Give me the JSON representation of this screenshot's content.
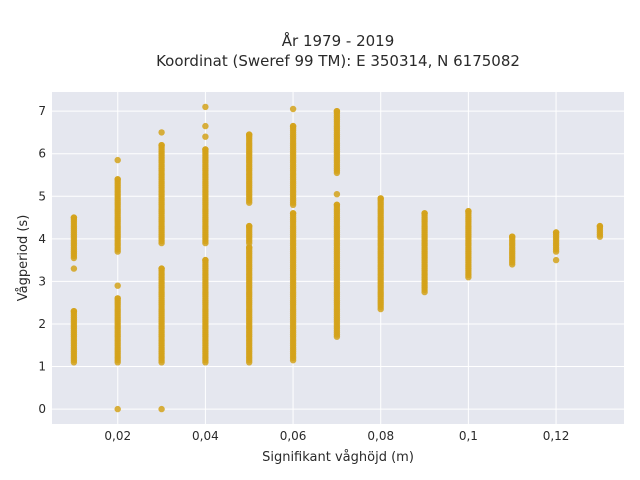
{
  "chart_data": {
    "type": "scatter",
    "title_line1": "År 1979 - 2019",
    "title_line2": "Koordinat (Sweref 99 TM): E 350314, N 6175082",
    "xlabel": "Signifikant våghöjd (m)",
    "ylabel": "Vågperiod (s)",
    "xlim": [
      0.005,
      0.1355
    ],
    "ylim": [
      -0.35,
      7.45
    ],
    "xticks": [
      0.02,
      0.04,
      0.06,
      0.08,
      0.1,
      0.12
    ],
    "xtick_labels": [
      "0,02",
      "0,04",
      "0,06",
      "0,08",
      "0,1",
      "0,12"
    ],
    "yticks": [
      0,
      1,
      2,
      3,
      4,
      5,
      6,
      7
    ],
    "ytick_labels": [
      "0",
      "1",
      "2",
      "3",
      "4",
      "5",
      "6",
      "7"
    ],
    "grid": true,
    "marker_color": "#d4a21a",
    "plot_bg": "#e5e7ef",
    "columns": [
      {
        "x": 0.01,
        "ranges": [
          [
            1.1,
            2.3
          ],
          [
            3.55,
            4.5
          ]
        ],
        "points": [
          3.3
        ]
      },
      {
        "x": 0.02,
        "ranges": [
          [
            1.1,
            2.6
          ],
          [
            3.7,
            5.4
          ]
        ],
        "points": [
          0,
          2.9,
          5.85
        ]
      },
      {
        "x": 0.03,
        "ranges": [
          [
            1.1,
            3.3
          ],
          [
            3.9,
            6.2
          ]
        ],
        "points": [
          0,
          6.5
        ]
      },
      {
        "x": 0.04,
        "ranges": [
          [
            1.1,
            3.5
          ],
          [
            3.9,
            6.1
          ]
        ],
        "points": [
          6.4,
          6.65,
          7.1
        ]
      },
      {
        "x": 0.05,
        "ranges": [
          [
            1.1,
            3.8
          ],
          [
            3.9,
            4.3
          ],
          [
            4.85,
            6.45
          ]
        ],
        "points": []
      },
      {
        "x": 0.06,
        "ranges": [
          [
            1.2,
            4.6
          ],
          [
            4.8,
            6.65
          ]
        ],
        "points": [
          1.15,
          7.05
        ]
      },
      {
        "x": 0.07,
        "ranges": [
          [
            1.7,
            4.8
          ],
          [
            5.55,
            7.0
          ]
        ],
        "points": [
          5.05
        ]
      },
      {
        "x": 0.08,
        "ranges": [
          [
            2.35,
            4.95
          ]
        ],
        "points": []
      },
      {
        "x": 0.09,
        "ranges": [
          [
            2.75,
            4.6
          ]
        ],
        "points": []
      },
      {
        "x": 0.1,
        "ranges": [
          [
            3.1,
            4.65
          ]
        ],
        "points": []
      },
      {
        "x": 0.11,
        "ranges": [
          [
            3.4,
            4.05
          ]
        ],
        "points": []
      },
      {
        "x": 0.12,
        "ranges": [
          [
            3.7,
            4.15
          ]
        ],
        "points": [
          3.5
        ]
      },
      {
        "x": 0.13,
        "ranges": [
          [
            4.05,
            4.3
          ]
        ],
        "points": []
      }
    ]
  }
}
